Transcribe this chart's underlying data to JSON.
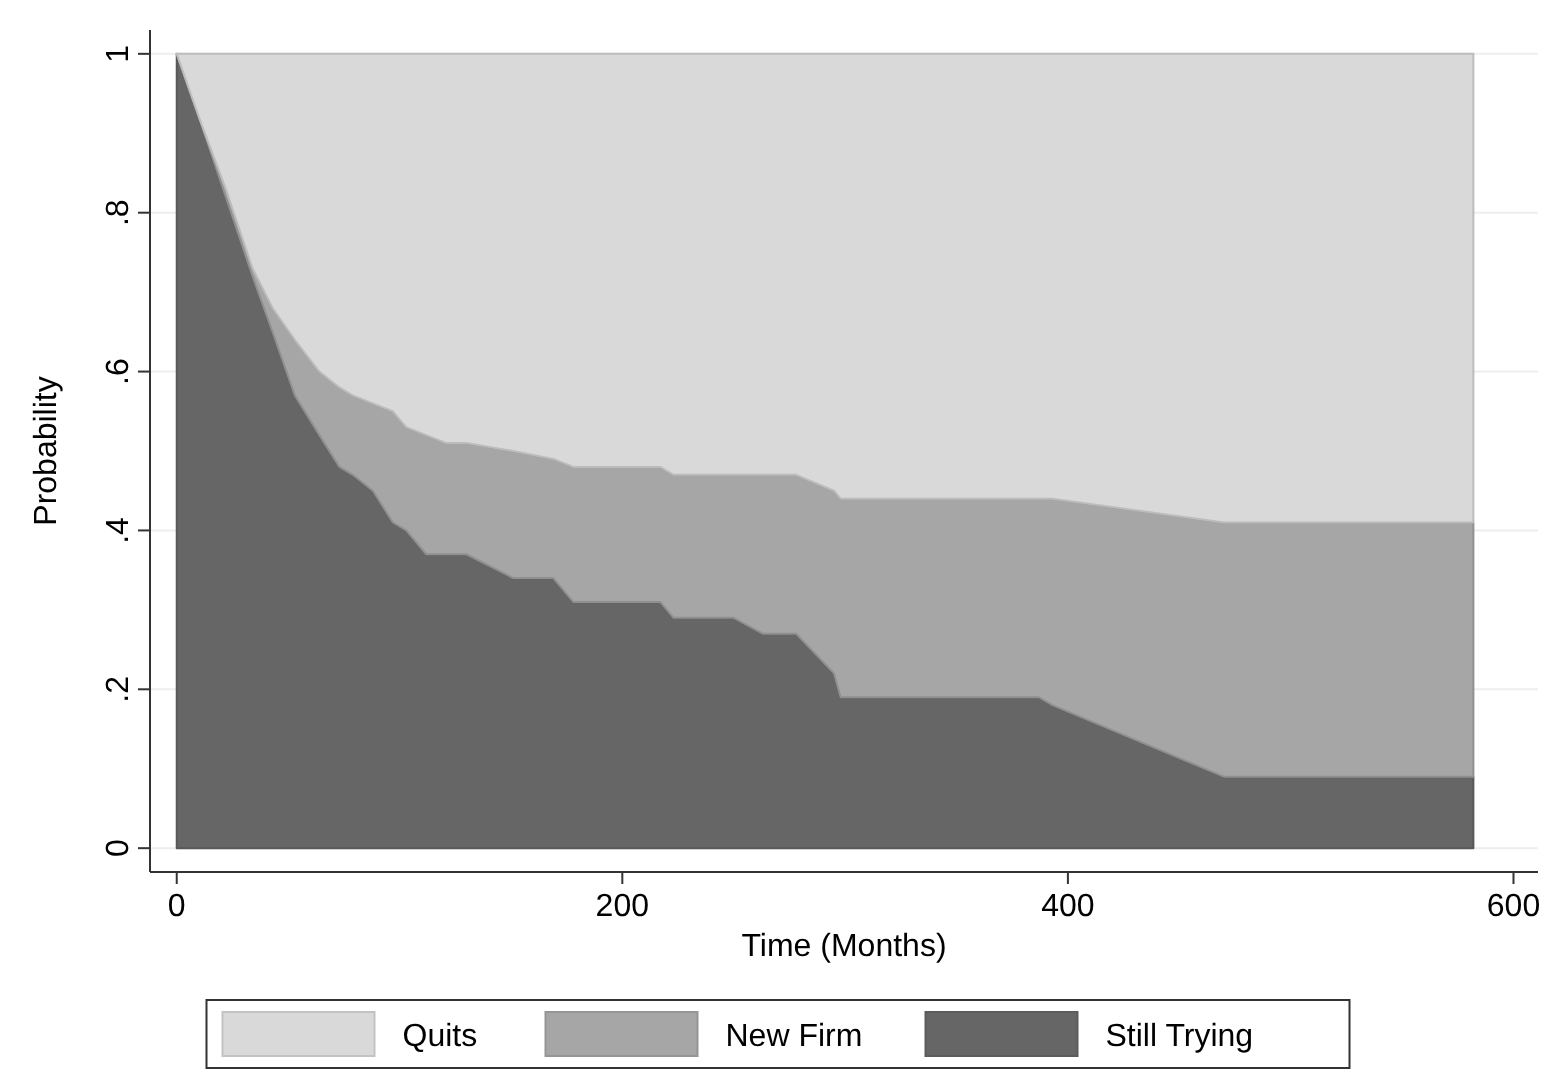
{
  "chart_data": {
    "type": "area",
    "stacked": true,
    "xlabel": "Time (Months)",
    "ylabel": "Probability",
    "x": [
      0,
      10,
      22,
      34,
      43,
      53,
      64,
      73,
      79,
      88,
      97,
      103,
      112,
      121,
      130,
      151,
      169,
      178,
      217,
      223,
      250,
      263,
      278,
      295,
      298,
      387,
      393,
      470,
      582
    ],
    "series": [
      {
        "name": "Still Trying",
        "color": "#666666",
        "values": [
          1.0,
          0.92,
          0.82,
          0.72,
          0.65,
          0.57,
          0.52,
          0.48,
          0.47,
          0.45,
          0.41,
          0.4,
          0.37,
          0.37,
          0.37,
          0.34,
          0.34,
          0.31,
          0.31,
          0.29,
          0.29,
          0.27,
          0.27,
          0.22,
          0.19,
          0.19,
          0.18,
          0.09,
          0.09
        ]
      },
      {
        "name": "New Firm",
        "color": "#a6a6a6",
        "values": [
          0,
          0,
          0.01,
          0.01,
          0.03,
          0.07,
          0.08,
          0.1,
          0.1,
          0.11,
          0.14,
          0.13,
          0.15,
          0.14,
          0.14,
          0.16,
          0.15,
          0.17,
          0.17,
          0.18,
          0.18,
          0.2,
          0.2,
          0.23,
          0.25,
          0.25,
          0.26,
          0.32,
          0.32
        ]
      },
      {
        "name": "Quits",
        "color": "#d9d9d9",
        "values": [
          0,
          0.08,
          0.17,
          0.27,
          0.32,
          0.36,
          0.4,
          0.42,
          0.43,
          0.44,
          0.45,
          0.47,
          0.48,
          0.49,
          0.49,
          0.5,
          0.51,
          0.52,
          0.52,
          0.53,
          0.53,
          0.53,
          0.53,
          0.55,
          0.56,
          0.56,
          0.56,
          0.59,
          0.59
        ]
      }
    ],
    "xlim": [
      -12,
      611
    ],
    "xticks": [
      0,
      200,
      400,
      600
    ],
    "ylim": [
      -0.03,
      1.03
    ],
    "yticks": [
      {
        "value": 0,
        "label": "0"
      },
      {
        "value": 0.2,
        "label": ".2"
      },
      {
        "value": 0.4,
        "label": ".4"
      },
      {
        "value": 0.6,
        "label": ".6"
      },
      {
        "value": 0.8,
        "label": ".8"
      },
      {
        "value": 1,
        "label": "1"
      }
    ],
    "grid": "y",
    "legend": "bottom"
  }
}
